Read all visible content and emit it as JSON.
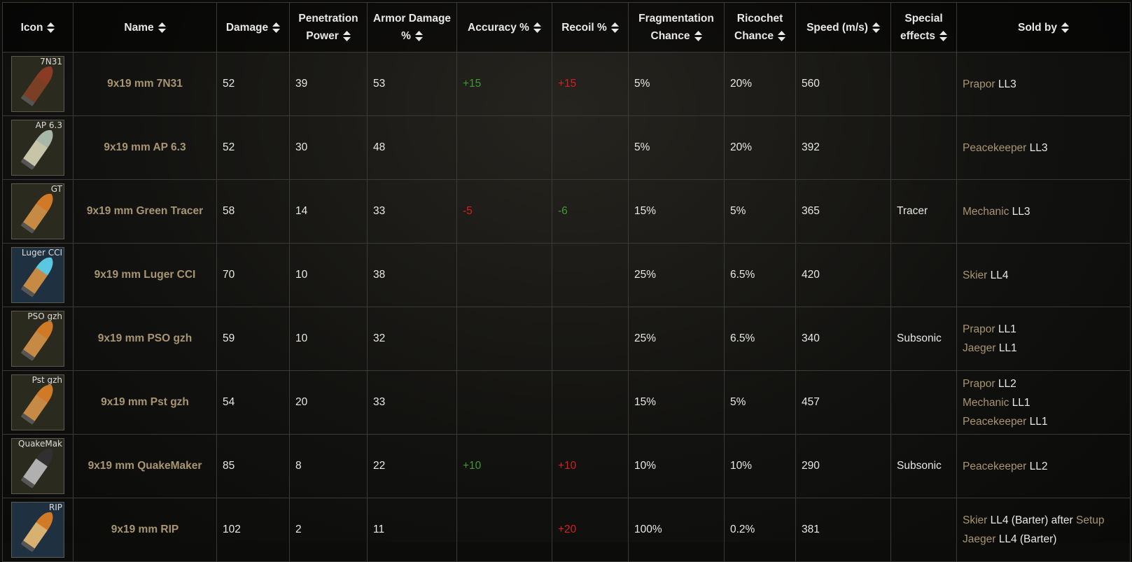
{
  "table": {
    "headers": [
      "Icon",
      "Name",
      "Damage",
      "Penetration Power",
      "Armor Damage %",
      "Accuracy %",
      "Recoil %",
      "Fragmentation Chance",
      "Ricochet Chance",
      "Speed (m/s)",
      "Special effects",
      "Sold by"
    ],
    "rows": [
      {
        "icon": "7N31",
        "name": "9x19 mm 7N31",
        "damage": 52,
        "penetration": 39,
        "armor_damage": 53,
        "accuracy": "+15",
        "recoil": "+15",
        "fragmentation": "5%",
        "ricochet": "20%",
        "speed": 560,
        "special": null,
        "sold_by": [
          {
            "trader": "Prapor",
            "level": "LL3"
          }
        ]
      },
      {
        "icon": "AP 6.3",
        "name": "9x19 mm AP 6.3",
        "damage": 52,
        "penetration": 30,
        "armor_damage": 48,
        "accuracy": null,
        "recoil": null,
        "fragmentation": "5%",
        "ricochet": "20%",
        "speed": 392,
        "special": null,
        "sold_by": [
          {
            "trader": "Peacekeeper",
            "level": "LL3"
          }
        ]
      },
      {
        "icon": "GT",
        "name": "9x19 mm Green Tracer",
        "damage": 58,
        "penetration": 14,
        "armor_damage": 33,
        "accuracy": "-5",
        "recoil": "-6",
        "fragmentation": "15%",
        "ricochet": "5%",
        "speed": 365,
        "special": "Tracer",
        "sold_by": [
          {
            "trader": "Mechanic",
            "level": "LL3"
          }
        ]
      },
      {
        "icon": "Luger CCI",
        "name": "9x19 mm Luger CCI",
        "damage": 70,
        "penetration": 10,
        "armor_damage": 38,
        "accuracy": null,
        "recoil": null,
        "fragmentation": "25%",
        "ricochet": "6.5%",
        "speed": 420,
        "special": null,
        "sold_by": [
          {
            "trader": "Skier",
            "level": "LL4"
          }
        ]
      },
      {
        "icon": "PSO gzh",
        "name": "9x19 mm PSO gzh",
        "damage": 59,
        "penetration": 10,
        "armor_damage": 32,
        "accuracy": null,
        "recoil": null,
        "fragmentation": "25%",
        "ricochet": "6.5%",
        "speed": 340,
        "special": "Subsonic",
        "sold_by": [
          {
            "trader": "Prapor",
            "level": "LL1"
          },
          {
            "trader": "Jaeger",
            "level": "LL1"
          }
        ]
      },
      {
        "icon": "Pst gzh",
        "name": "9x19 mm Pst gzh",
        "damage": 54,
        "penetration": 20,
        "armor_damage": 33,
        "accuracy": null,
        "recoil": null,
        "fragmentation": "15%",
        "ricochet": "5%",
        "speed": 457,
        "special": null,
        "sold_by": [
          {
            "trader": "Prapor",
            "level": "LL2"
          },
          {
            "trader": "Mechanic",
            "level": "LL1"
          },
          {
            "trader": "Peacekeeper",
            "level": "LL1"
          }
        ]
      },
      {
        "icon": "QuakeMak",
        "name": "9x19 mm QuakeMaker",
        "damage": 85,
        "penetration": 8,
        "armor_damage": 22,
        "accuracy": "+10",
        "recoil": "+10",
        "fragmentation": "10%",
        "ricochet": "10%",
        "speed": 290,
        "special": "Subsonic",
        "sold_by": [
          {
            "trader": "Peacekeeper",
            "level": "LL2"
          }
        ]
      },
      {
        "icon": "RIP",
        "name": "9x19 mm RIP",
        "damage": 102,
        "penetration": 2,
        "armor_damage": 11,
        "accuracy": null,
        "recoil": "+20",
        "fragmentation": "100%",
        "ricochet": "0.2%",
        "speed": 381,
        "special": null,
        "sold_by": [
          {
            "trader": "Skier",
            "level": "LL4 (Barter) after",
            "quest": "Setup"
          },
          {
            "trader": "Jaeger",
            "level": "LL4 (Barter)"
          }
        ]
      }
    ]
  }
}
